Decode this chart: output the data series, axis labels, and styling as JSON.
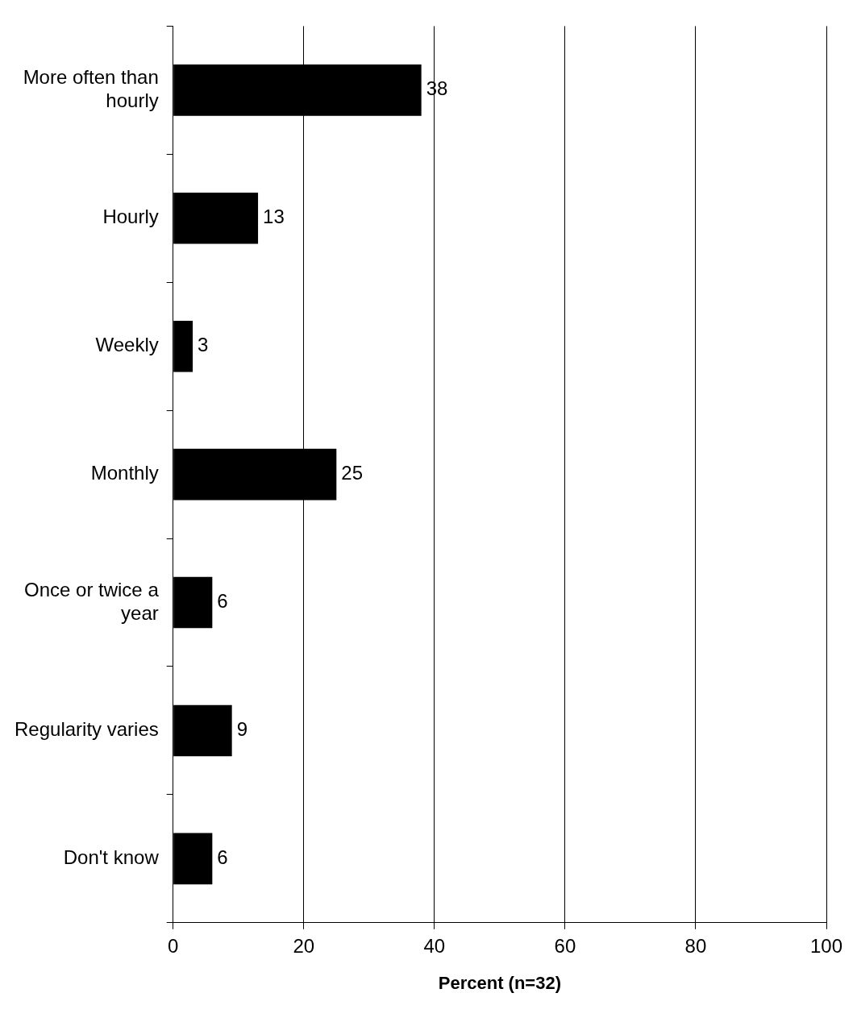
{
  "chart_data": {
    "type": "bar",
    "orientation": "horizontal",
    "xlabel": "Percent (n=32)",
    "categories": [
      "More often than hourly",
      "Hourly",
      "Weekly",
      "Monthly",
      "Once or twice a year",
      "Regularity varies",
      "Don't know"
    ],
    "values": [
      38,
      13,
      3,
      25,
      6,
      9,
      6
    ],
    "color": "#000000",
    "xlim": [
      0,
      100
    ],
    "xticks": [
      0,
      20,
      40,
      60,
      80,
      100
    ],
    "grid": "x",
    "data_labels": true
  }
}
